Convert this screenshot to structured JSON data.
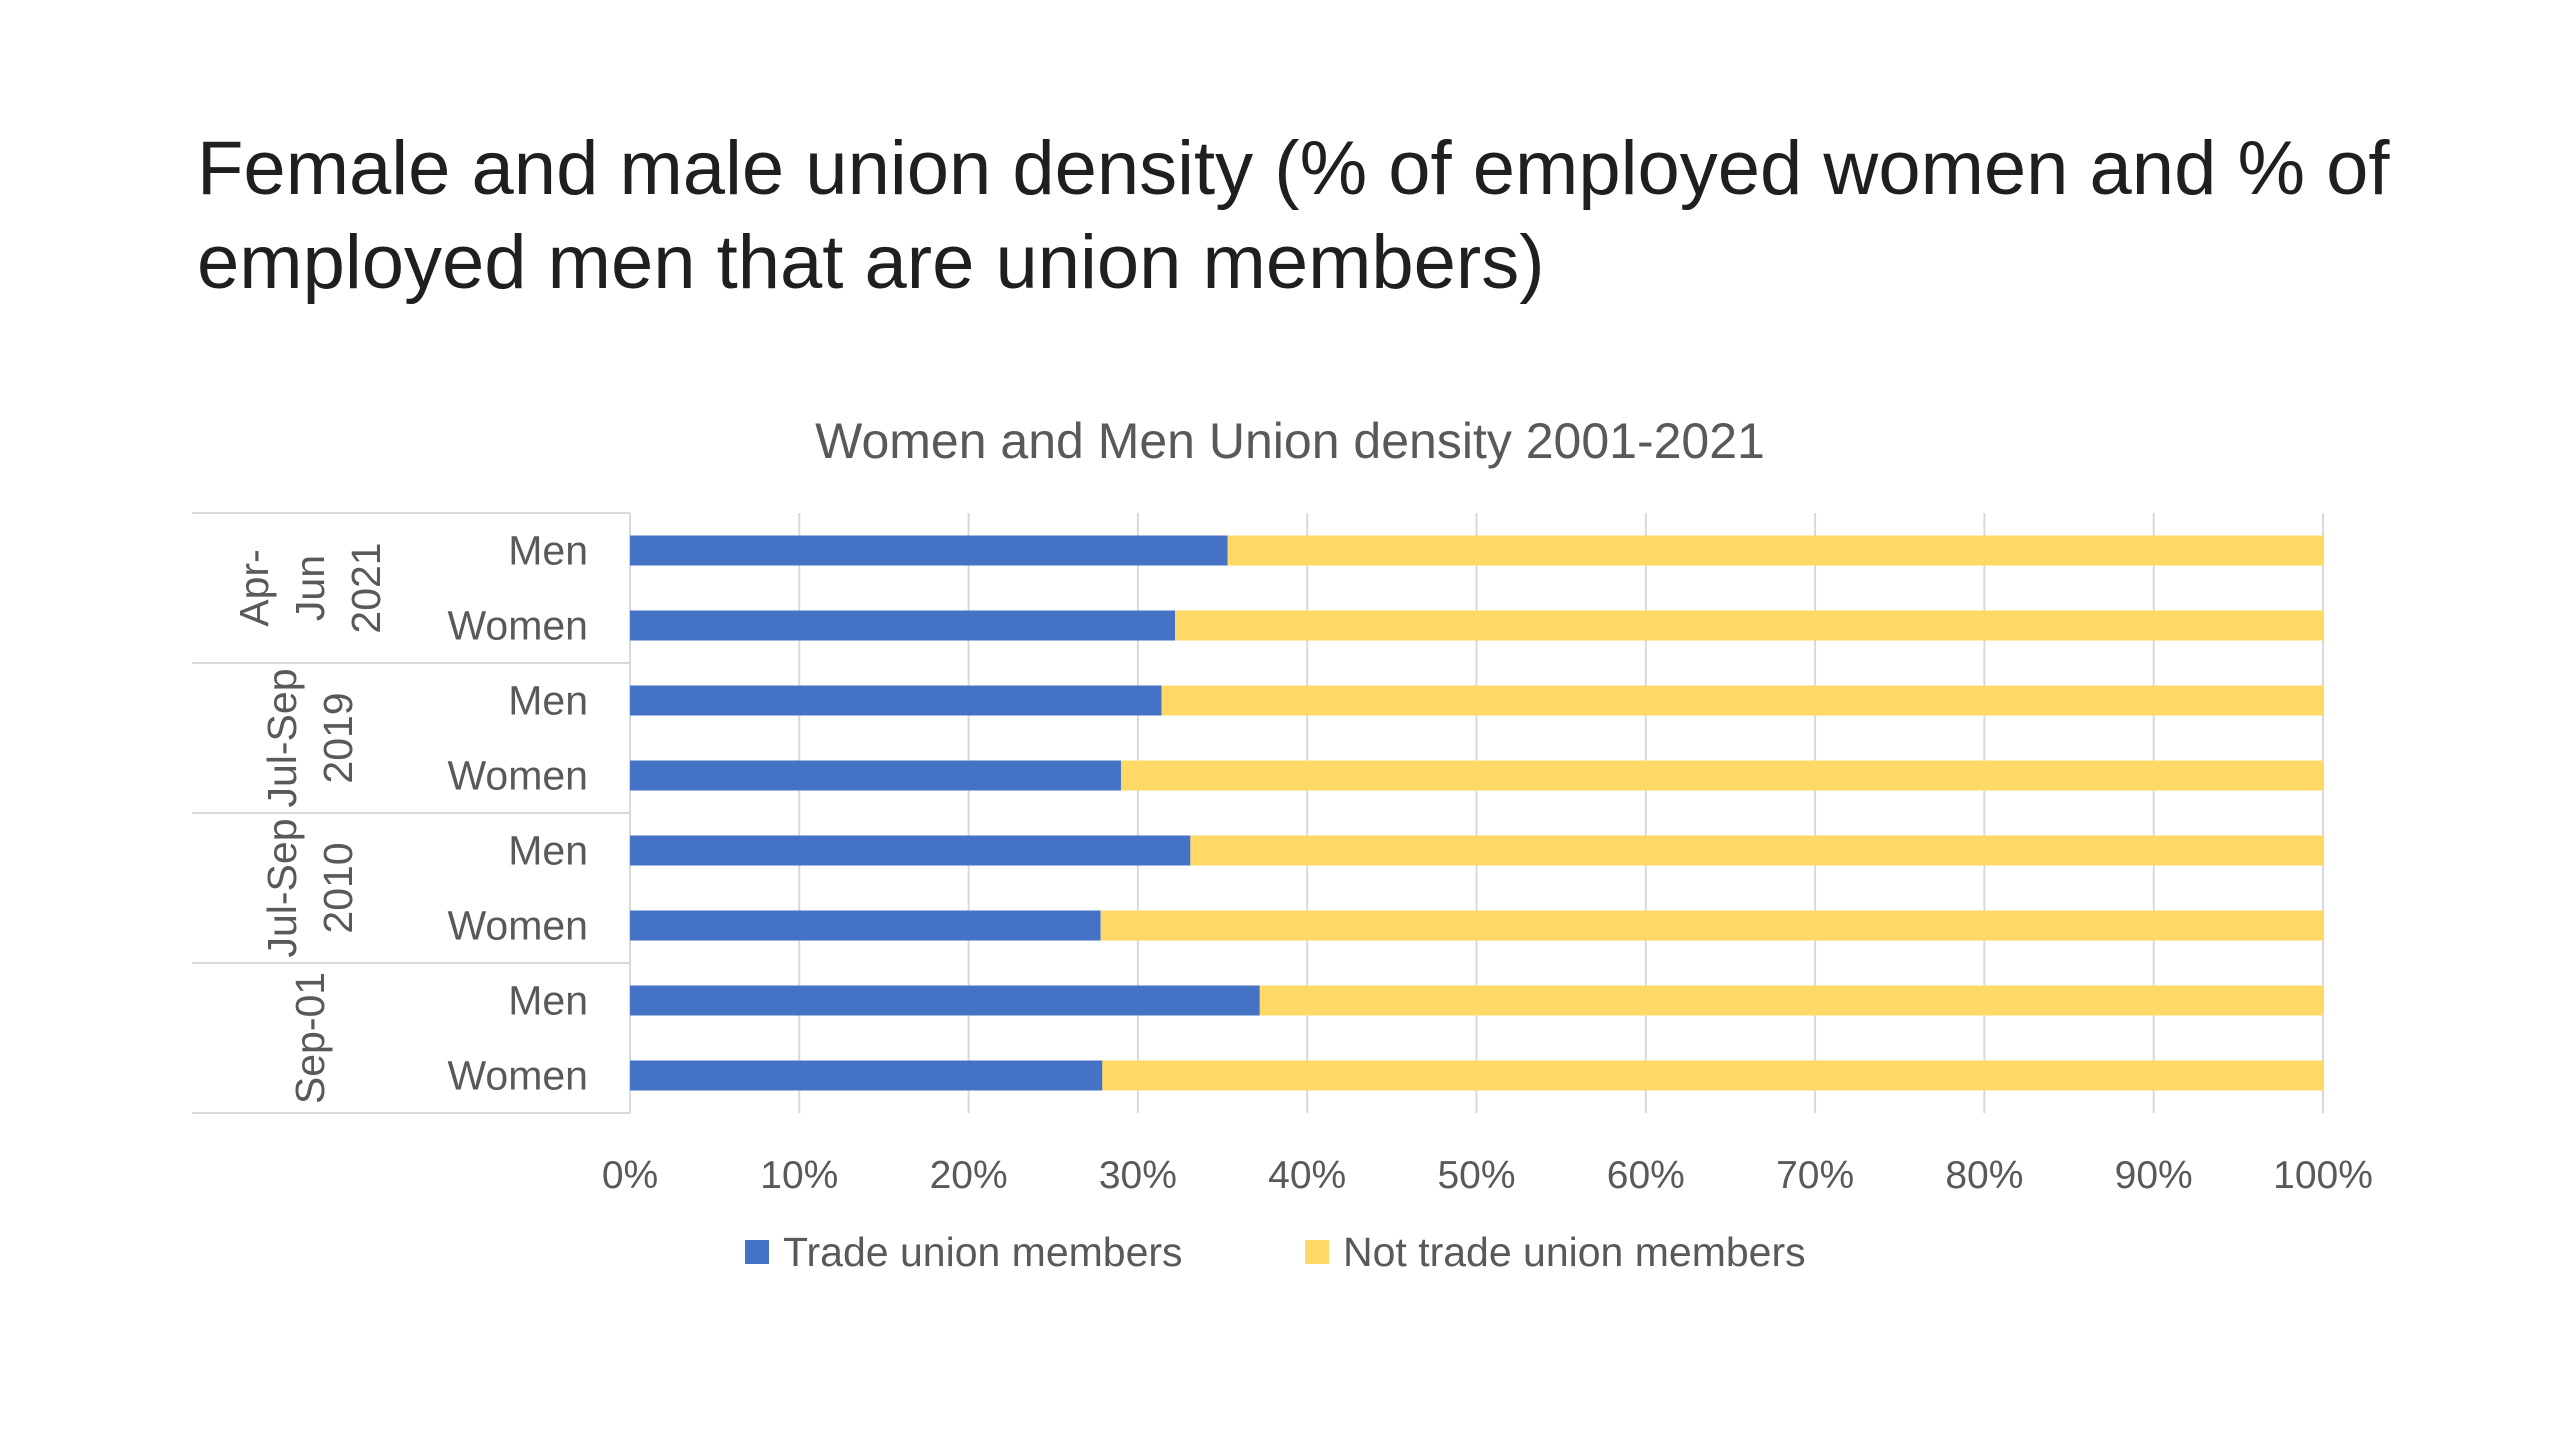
{
  "slide": {
    "title": "Female and male union density (% of employed women and % of employed men that are union members)"
  },
  "chart_data": {
    "type": "bar",
    "orientation": "horizontal",
    "stacked": "percent",
    "title": "Women and Men Union density 2001-2021",
    "groups": [
      {
        "label": [
          "Apr-",
          "Jun",
          "2021"
        ],
        "categories": [
          "Men",
          "Women"
        ]
      },
      {
        "label": [
          "Jul-Sep",
          "2019"
        ],
        "categories": [
          "Men",
          "Women"
        ]
      },
      {
        "label": [
          "Jul-Sep",
          "2010"
        ],
        "categories": [
          "Men",
          "Women"
        ]
      },
      {
        "label": [
          "Sep-01"
        ],
        "categories": [
          "Men",
          "Women"
        ]
      }
    ],
    "series": [
      {
        "name": "Trade union members",
        "color": "#4472C4",
        "values": [
          35.3,
          32.2,
          31.4,
          29.0,
          33.1,
          27.8,
          37.2,
          27.9
        ]
      },
      {
        "name": "Not trade union members",
        "color": "#FFD966",
        "values": [
          64.7,
          67.8,
          68.6,
          71.0,
          66.9,
          72.2,
          62.8,
          72.1
        ]
      }
    ],
    "xlim": [
      0,
      100
    ],
    "x_ticks": [
      "0%",
      "10%",
      "20%",
      "30%",
      "40%",
      "50%",
      "60%",
      "70%",
      "80%",
      "90%",
      "100%"
    ],
    "grid": true,
    "legend_position": "bottom"
  }
}
